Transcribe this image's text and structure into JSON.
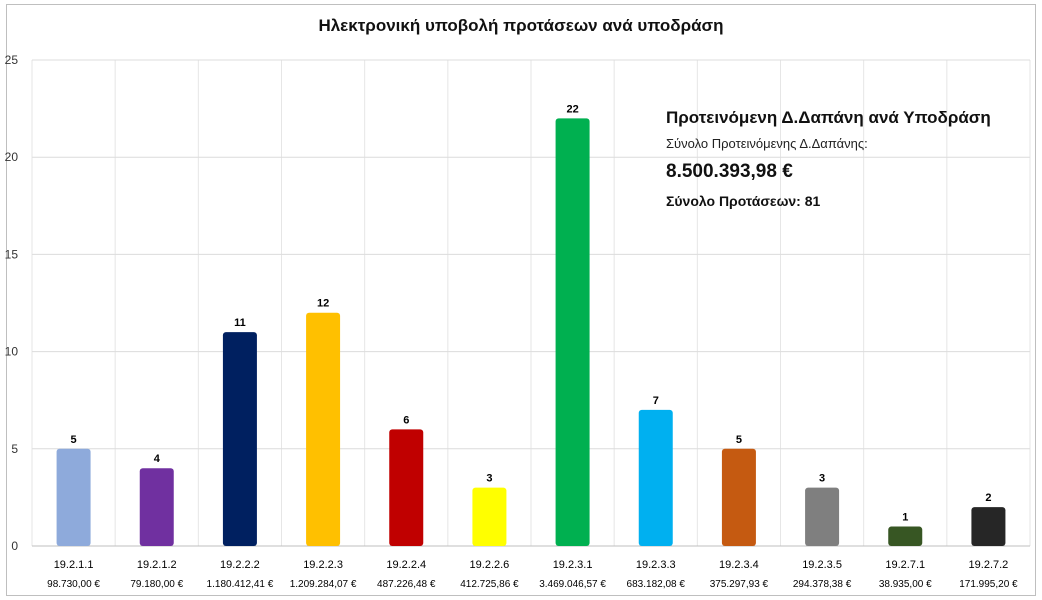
{
  "chart_data": {
    "type": "bar",
    "title": "Ηλεκτρονική υποβολή προτάσεων ανά υποδράση",
    "categories": [
      "19.2.1.1",
      "19.2.1.2",
      "19.2.2.2",
      "19.2.2.3",
      "19.2.2.4",
      "19.2.2.6",
      "19.2.3.1",
      "19.2.3.3",
      "19.2.3.4",
      "19.2.3.5",
      "19.2.7.1",
      "19.2.7.2"
    ],
    "amounts": [
      "98.730,00 €",
      "79.180,00 €",
      "1.180.412,41 €",
      "1.209.284,07 €",
      "487.226,48 €",
      "412.725,86 €",
      "3.469.046,57 €",
      "683.182,08 €",
      "375.297,93 €",
      "294.378,38 €",
      "38.935,00 €",
      "171.995,20 €"
    ],
    "values": [
      5,
      4,
      11,
      12,
      6,
      3,
      22,
      7,
      5,
      3,
      1,
      2
    ],
    "colors": [
      "#8eaadb",
      "#7030a0",
      "#002060",
      "#ffc000",
      "#c00000",
      "#ffff00",
      "#00b050",
      "#00b0f0",
      "#c55a11",
      "#7f7f7f",
      "#375623",
      "#262626"
    ],
    "ylim": [
      0,
      25
    ],
    "yticks": [
      0,
      5,
      10,
      15,
      20,
      25
    ],
    "grid": true,
    "legend": "none"
  },
  "summary": {
    "title": "Προτεινόμενη Δ.Δαπάνη ανά Υποδράση",
    "subtitle": "Σύνολο Προτεινόμενης Δ.Δαπάνης:",
    "amount": "8.500.393,98 €",
    "count": "Σύνολο Προτάσεων: 81"
  }
}
